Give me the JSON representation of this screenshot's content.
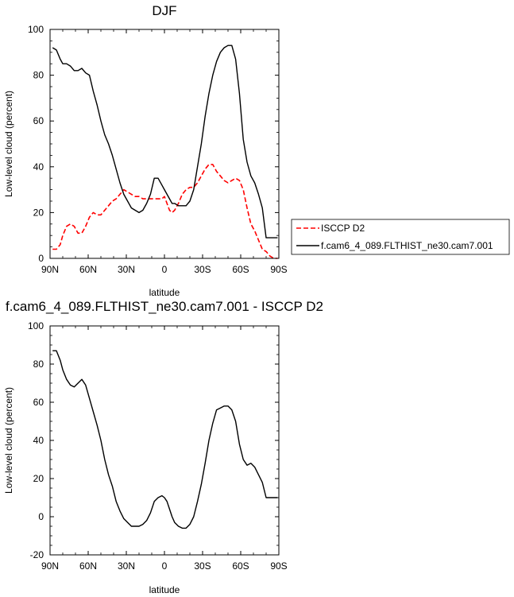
{
  "chart_data": [
    {
      "type": "line",
      "title": "DJF",
      "xlabel": "latitude",
      "ylabel": "Low-level cloud (percent)",
      "xlim": [
        90,
        -90
      ],
      "ylim": [
        0,
        100
      ],
      "x_tick_values": [
        90,
        60,
        30,
        0,
        -30,
        -60,
        -90
      ],
      "x_tick_labels": [
        "90N",
        "60N",
        "30N",
        "0",
        "30S",
        "60S",
        "90S"
      ],
      "y_tick_values": [
        0,
        20,
        40,
        60,
        80,
        100
      ],
      "y_tick_labels": [
        "0",
        "20",
        "40",
        "60",
        "80",
        "100"
      ],
      "legend": {
        "placement": "right",
        "entries": [
          "ISCCP D2",
          "f.cam6_4_089.FLTHIST_ne30.cam7.001"
        ]
      },
      "series": [
        {
          "name": "ISCCP D2",
          "color": "#ff0000",
          "dash": "dashed",
          "x": [
            88,
            85,
            82,
            80,
            77,
            74,
            71,
            68,
            65,
            62,
            59,
            56,
            53,
            50,
            47,
            44,
            41,
            38,
            35,
            32,
            29,
            26,
            23,
            20,
            17,
            14,
            11,
            8,
            5,
            2,
            0,
            -2,
            -4,
            -6,
            -8,
            -11,
            -14,
            -17,
            -20,
            -23,
            -26,
            -29,
            -32,
            -35,
            -38,
            -41,
            -44,
            -47,
            -50,
            -53,
            -56,
            -59,
            -62,
            -65,
            -68,
            -71,
            -74,
            -77,
            -80,
            -83,
            -86,
            -89
          ],
          "y": [
            4,
            4,
            6,
            10,
            14,
            15,
            14,
            11,
            11,
            14,
            18,
            20,
            19,
            19,
            21,
            23,
            25,
            26,
            28,
            30,
            29,
            28,
            27,
            27,
            26,
            26,
            26,
            26,
            26,
            26,
            27,
            24,
            21,
            20,
            21,
            24,
            28,
            30,
            31,
            31,
            33,
            36,
            39,
            41,
            41,
            38,
            36,
            34,
            33,
            34,
            35,
            34,
            30,
            22,
            15,
            12,
            8,
            4,
            3,
            1,
            0,
            0
          ]
        },
        {
          "name": "f.cam6_4_089.FLTHIST_ne30.cam7.001",
          "color": "#000000",
          "dash": "solid",
          "x": [
            88,
            85,
            82,
            80,
            77,
            74,
            71,
            68,
            65,
            62,
            59,
            56,
            53,
            50,
            47,
            44,
            41,
            38,
            35,
            32,
            29,
            26,
            23,
            20,
            17,
            14,
            11,
            8,
            5,
            2,
            0,
            -2,
            -4,
            -6,
            -8,
            -11,
            -14,
            -17,
            -20,
            -23,
            -26,
            -29,
            -32,
            -35,
            -38,
            -41,
            -44,
            -47,
            -50,
            -53,
            -56,
            -59,
            -62,
            -65,
            -68,
            -71,
            -74,
            -77,
            -80,
            -83,
            -86,
            -89
          ],
          "y": [
            92,
            91,
            87,
            85,
            85,
            84,
            82,
            82,
            83,
            81,
            80,
            73,
            67,
            60,
            54,
            50,
            45,
            39,
            33,
            28,
            25,
            22,
            21,
            20,
            21,
            24,
            28,
            35,
            35,
            32,
            30,
            28,
            26,
            24,
            24,
            23,
            23,
            23,
            25,
            30,
            40,
            50,
            62,
            72,
            80,
            86,
            90,
            92,
            93,
            93,
            87,
            72,
            52,
            42,
            36,
            33,
            28,
            22,
            9,
            9,
            9,
            9
          ]
        }
      ]
    },
    {
      "type": "line",
      "title": "f.cam6_4_089.FLTHIST_ne30.cam7.001 - ISCCP D2",
      "xlabel": "latitude",
      "ylabel": "Low-level cloud (percent)",
      "xlim": [
        90,
        -90
      ],
      "ylim": [
        -20,
        100
      ],
      "x_tick_values": [
        90,
        60,
        30,
        0,
        -30,
        -60,
        -90
      ],
      "x_tick_labels": [
        "90N",
        "60N",
        "30N",
        "0",
        "30S",
        "60S",
        "90S"
      ],
      "y_tick_values": [
        -20,
        0,
        20,
        40,
        60,
        80,
        100
      ],
      "y_tick_labels": [
        "-20",
        "0",
        "20",
        "40",
        "60",
        "80",
        "100"
      ],
      "series": [
        {
          "color": "#000000",
          "dash": "solid",
          "x": [
            88,
            85,
            82,
            80,
            77,
            74,
            71,
            68,
            65,
            62,
            59,
            56,
            53,
            50,
            47,
            44,
            41,
            38,
            35,
            32,
            29,
            26,
            23,
            20,
            17,
            14,
            11,
            8,
            5,
            2,
            0,
            -2,
            -4,
            -6,
            -8,
            -11,
            -14,
            -17,
            -20,
            -23,
            -26,
            -29,
            -32,
            -35,
            -38,
            -41,
            -44,
            -47,
            -50,
            -53,
            -56,
            -59,
            -62,
            -65,
            -68,
            -71,
            -74,
            -77,
            -80,
            -83,
            -86,
            -89
          ],
          "y": [
            87,
            87,
            82,
            77,
            72,
            69,
            68,
            70,
            72,
            69,
            62,
            55,
            48,
            40,
            30,
            22,
            16,
            8,
            3,
            -1,
            -3,
            -5,
            -5,
            -5,
            -4,
            -2,
            2,
            8,
            10,
            11,
            10,
            8,
            4,
            0,
            -3,
            -5,
            -6,
            -6,
            -4,
            0,
            8,
            17,
            28,
            40,
            49,
            56,
            57,
            58,
            58,
            56,
            50,
            38,
            30,
            27,
            28,
            26,
            22,
            18,
            10,
            10,
            10,
            10
          ]
        }
      ]
    }
  ]
}
